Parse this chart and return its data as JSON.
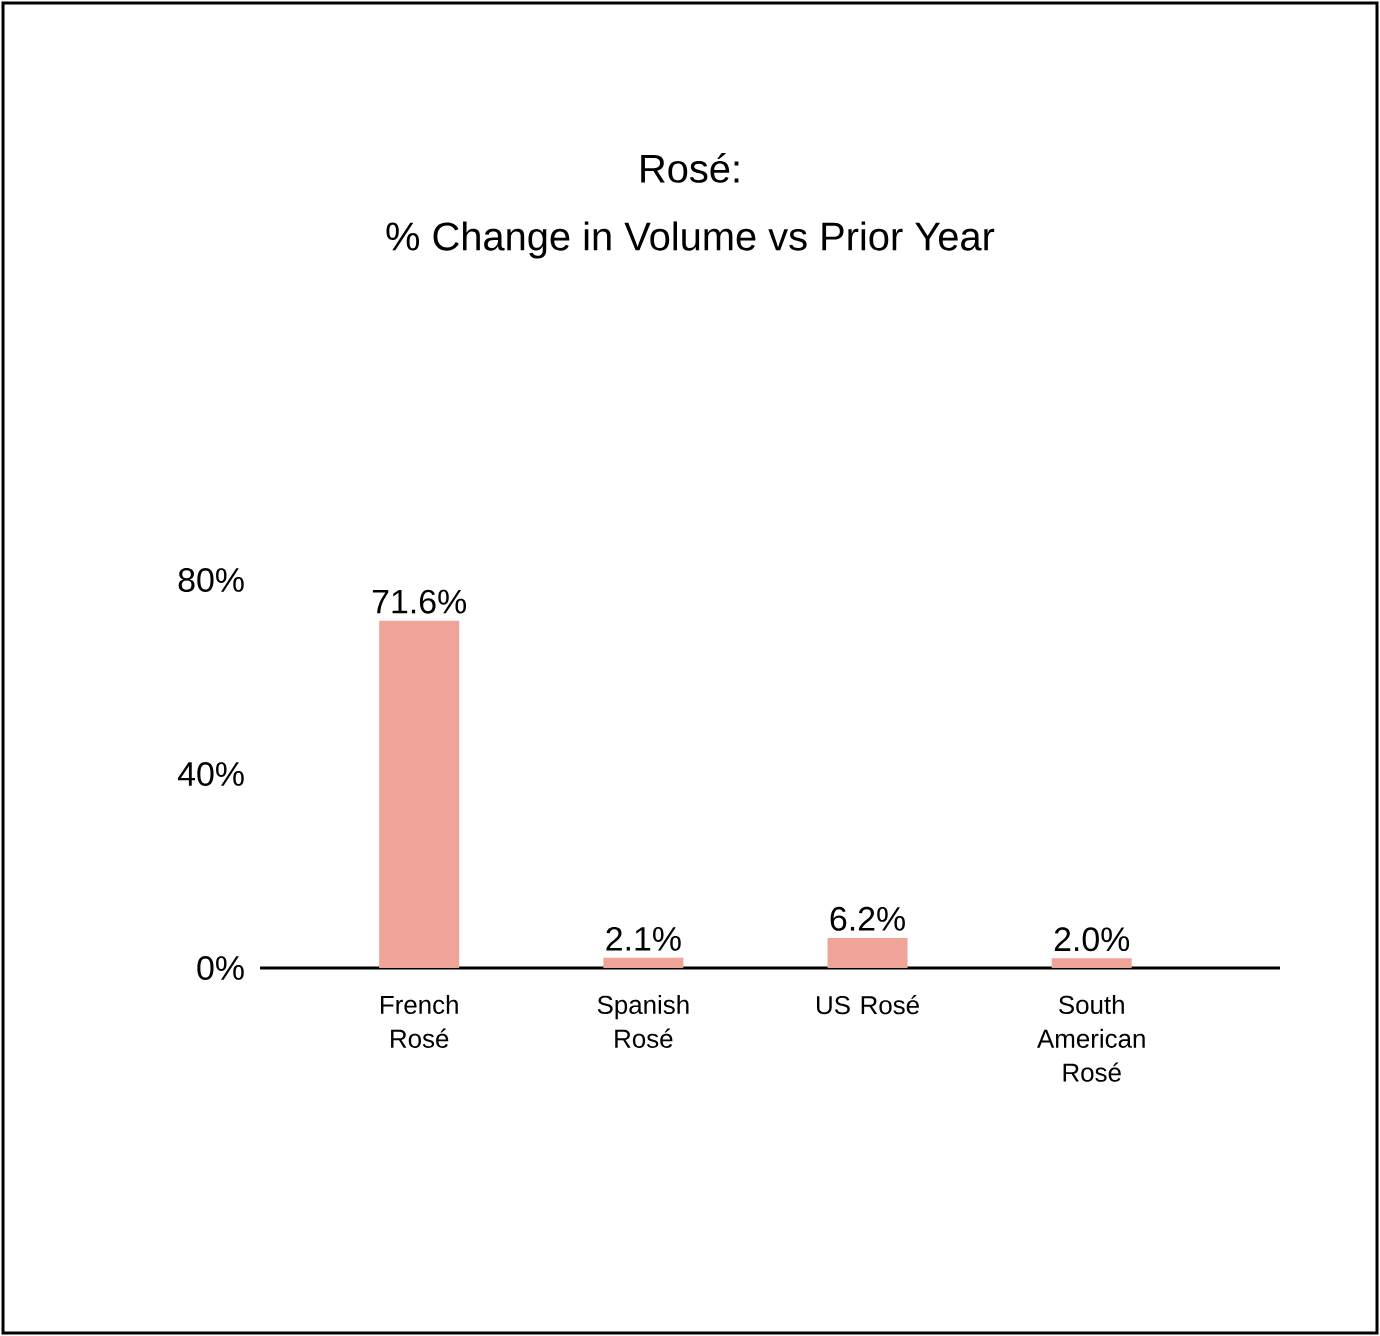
{
  "chart_data": {
    "type": "bar",
    "title": "Rosé:",
    "subtitle": "% Change in Volume vs Prior Year",
    "categories": [
      "French Rosé",
      "Spanish Rosé",
      "US Rosé",
      "South American Rosé"
    ],
    "values": [
      71.6,
      2.1,
      6.2,
      2.0
    ],
    "value_labels": [
      "71.6%",
      "2.1%",
      "6.2%",
      "2.0%"
    ],
    "color": "#f0a398",
    "ylim": [
      0,
      80
    ],
    "yticks": [
      {
        "value": 0,
        "label": "0%"
      },
      {
        "value": 40,
        "label": "40%"
      },
      {
        "value": 80,
        "label": "80%"
      }
    ],
    "grid": false
  }
}
